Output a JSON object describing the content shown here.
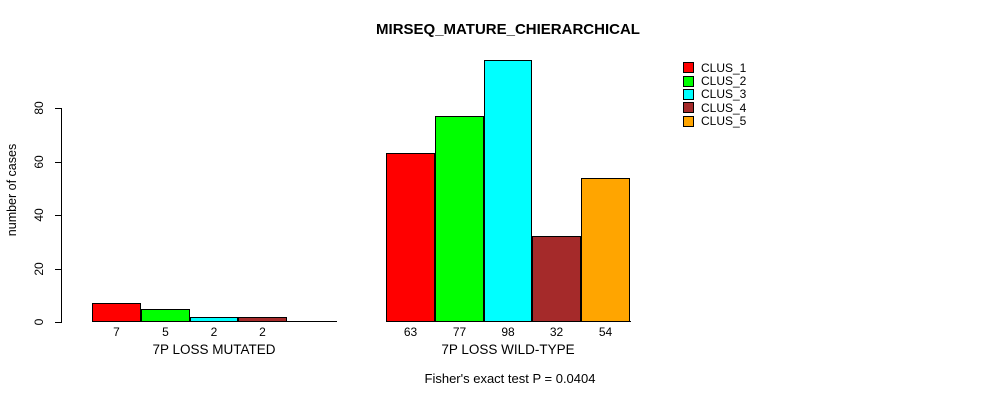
{
  "title": "MIRSEQ_MATURE_CHIERARCHICAL",
  "footer": "Fisher's exact test P = 0.0404",
  "chart_data": {
    "type": "bar",
    "title": "MIRSEQ_MATURE_CHIERARCHICAL",
    "xlabel": "",
    "ylabel": "number of cases",
    "ylim": [
      0,
      100
    ],
    "yticks": [
      0,
      20,
      40,
      60,
      80
    ],
    "grid": false,
    "legend_position": "top-right",
    "background": "#ffffff",
    "bar_border_color": "#000000",
    "categories": [
      "7P LOSS MUTATED",
      "7P LOSS WILD-TYPE"
    ],
    "series": [
      {
        "name": "CLUS_1",
        "color": "#FF0000",
        "values": [
          7,
          63
        ]
      },
      {
        "name": "CLUS_2",
        "color": "#00FF00",
        "values": [
          5,
          77
        ]
      },
      {
        "name": "CLUS_3",
        "color": "#00FFFF",
        "values": [
          2,
          98
        ]
      },
      {
        "name": "CLUS_4",
        "color": "#A52A2A",
        "values": [
          2,
          32
        ]
      },
      {
        "name": "CLUS_5",
        "color": "#FFA500",
        "values": [
          0,
          54
        ]
      }
    ],
    "groups": [
      {
        "label": "7P LOSS MUTATED",
        "values": [
          7,
          5,
          2,
          2,
          0
        ],
        "bar_labels": [
          "7",
          "5",
          "2",
          "2",
          ""
        ]
      },
      {
        "label": "7P LOSS WILD-TYPE",
        "values": [
          63,
          77,
          98,
          32,
          54
        ],
        "bar_labels": [
          "63",
          "77",
          "98",
          "32",
          "54"
        ]
      }
    ],
    "annotation": "Fisher's exact test P = 0.0404"
  },
  "legend": {
    "items": [
      {
        "label": "CLUS_1",
        "color": "#FF0000"
      },
      {
        "label": "CLUS_2",
        "color": "#00FF00"
      },
      {
        "label": "CLUS_3",
        "color": "#00FFFF"
      },
      {
        "label": "CLUS_4",
        "color": "#A52A2A"
      },
      {
        "label": "CLUS_5",
        "color": "#FFA500"
      }
    ]
  }
}
